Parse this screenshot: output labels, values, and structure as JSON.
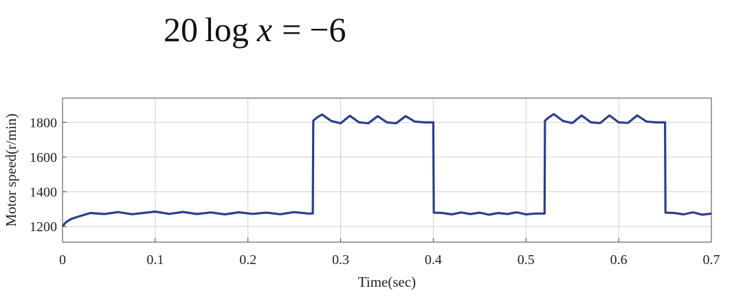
{
  "equation": {
    "coef": "20",
    "func": "log",
    "var": "x",
    "eq": "=",
    "rhs": "−6"
  },
  "chart_data": {
    "type": "line",
    "xlabel": "Time(sec)",
    "ylabel": "Motor speed(r/min)",
    "xlim": [
      0,
      0.7
    ],
    "ylim": [
      1110,
      1940
    ],
    "xticks": [
      0,
      0.1,
      0.2,
      0.3,
      0.4,
      0.5,
      0.6,
      0.7
    ],
    "xtick_labels": [
      "0",
      "0.1",
      "0.2",
      "0.3",
      "0.4",
      "0.5",
      "0.6",
      "0.7"
    ],
    "yticks": [
      1200,
      1400,
      1600,
      1800
    ],
    "ytick_labels": [
      "1200",
      "1400",
      "1600",
      "1800"
    ],
    "grid": true,
    "line_color": "#2a3f8f",
    "series": [
      {
        "x": [
          0,
          0.002,
          0.005,
          0.01,
          0.02,
          0.03,
          0.045,
          0.06,
          0.075,
          0.09,
          0.1,
          0.115,
          0.13,
          0.145,
          0.16,
          0.175,
          0.19,
          0.205,
          0.22,
          0.235,
          0.25,
          0.265,
          0.27,
          0.2705,
          0.275,
          0.28,
          0.29,
          0.3,
          0.31,
          0.32,
          0.33,
          0.34,
          0.35,
          0.36,
          0.37,
          0.38,
          0.39,
          0.4,
          0.4005,
          0.41,
          0.42,
          0.43,
          0.44,
          0.45,
          0.46,
          0.47,
          0.48,
          0.49,
          0.5,
          0.51,
          0.52,
          0.5205,
          0.525,
          0.53,
          0.54,
          0.55,
          0.56,
          0.57,
          0.58,
          0.59,
          0.6,
          0.61,
          0.62,
          0.63,
          0.64,
          0.65,
          0.6505,
          0.66,
          0.67,
          0.68,
          0.69,
          0.7
        ],
        "y": [
          1200,
          1215,
          1230,
          1245,
          1262,
          1278,
          1272,
          1283,
          1271,
          1280,
          1286,
          1273,
          1284,
          1272,
          1281,
          1270,
          1282,
          1273,
          1280,
          1271,
          1283,
          1275,
          1275,
          1810,
          1830,
          1845,
          1808,
          1795,
          1838,
          1800,
          1795,
          1836,
          1800,
          1795,
          1836,
          1805,
          1800,
          1800,
          1280,
          1278,
          1270,
          1281,
          1272,
          1280,
          1268,
          1278,
          1272,
          1282,
          1270,
          1275,
          1275,
          1810,
          1830,
          1848,
          1808,
          1796,
          1840,
          1800,
          1796,
          1840,
          1800,
          1797,
          1840,
          1805,
          1800,
          1800,
          1280,
          1278,
          1270,
          1282,
          1268,
          1275
        ]
      }
    ]
  }
}
